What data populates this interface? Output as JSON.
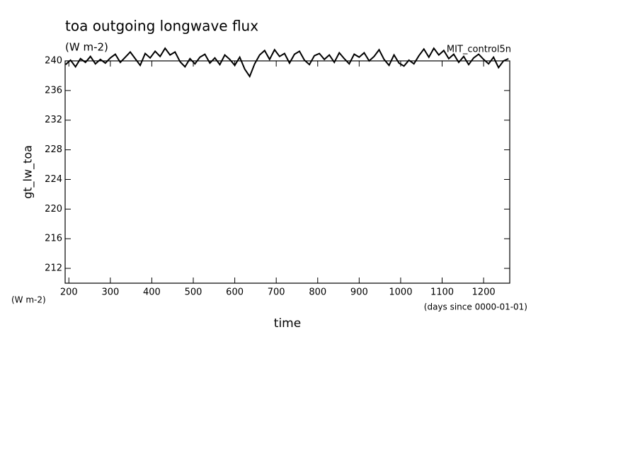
{
  "chart_data": {
    "type": "line",
    "title": "toa outgoing longwave flux",
    "subtitle": "(W m-2)",
    "annotation": "MIT_control5n",
    "y_label": "gt_lw_toa",
    "y_units": "(W m-2)",
    "x_label": "time",
    "x_units": "(days since 0000-01-01)",
    "x": [
      192,
      204,
      216,
      228,
      240,
      252,
      264,
      276,
      288,
      300,
      312,
      324,
      336,
      348,
      360,
      372,
      384,
      396,
      408,
      420,
      432,
      444,
      456,
      468,
      480,
      492,
      504,
      516,
      528,
      540,
      552,
      564,
      576,
      588,
      600,
      612,
      624,
      636,
      648,
      660,
      672,
      684,
      696,
      708,
      720,
      732,
      744,
      756,
      768,
      780,
      792,
      804,
      816,
      828,
      840,
      852,
      864,
      876,
      888,
      900,
      912,
      924,
      936,
      948,
      960,
      972,
      984,
      996,
      1008,
      1020,
      1032,
      1044,
      1056,
      1068,
      1080,
      1092,
      1104,
      1116,
      1128,
      1140,
      1152,
      1164,
      1176,
      1188,
      1200,
      1212,
      1224,
      1236,
      1248,
      1260
    ],
    "series": [
      {
        "name": "gt_lw_toa",
        "color": "#000000",
        "values": [
          239.5,
          240.1,
          239.2,
          240.3,
          239.8,
          240.6,
          239.6,
          240.2,
          239.7,
          240.4,
          240.9,
          239.8,
          240.5,
          241.2,
          240.3,
          239.4,
          241.0,
          240.4,
          241.3,
          240.6,
          241.7,
          240.8,
          241.2,
          239.9,
          239.2,
          240.3,
          239.6,
          240.5,
          240.9,
          239.7,
          240.4,
          239.5,
          240.8,
          240.2,
          239.4,
          240.5,
          238.9,
          237.9,
          239.6,
          240.8,
          241.4,
          240.2,
          241.5,
          240.6,
          241.0,
          239.7,
          240.9,
          241.3,
          240.1,
          239.5,
          240.7,
          241.0,
          240.2,
          240.8,
          239.8,
          241.1,
          240.3,
          239.6,
          240.9,
          240.5,
          241.1,
          240.0,
          240.6,
          241.5,
          240.2,
          239.4,
          240.8,
          239.7,
          239.3,
          240.1,
          239.6,
          240.7,
          241.6,
          240.5,
          241.7,
          240.8,
          241.4,
          240.3,
          240.9,
          239.8,
          240.6,
          239.5,
          240.4,
          240.9,
          240.2,
          239.6,
          240.5,
          239.1,
          240.0,
          240.3
        ]
      }
    ],
    "xlim": [
      191,
      1263
    ],
    "ylim": [
      210,
      240
    ],
    "xticks": [
      200,
      300,
      400,
      500,
      600,
      700,
      800,
      900,
      1000,
      1100,
      1200
    ],
    "yticks": [
      212,
      216,
      220,
      224,
      228,
      232,
      236,
      240
    ]
  }
}
